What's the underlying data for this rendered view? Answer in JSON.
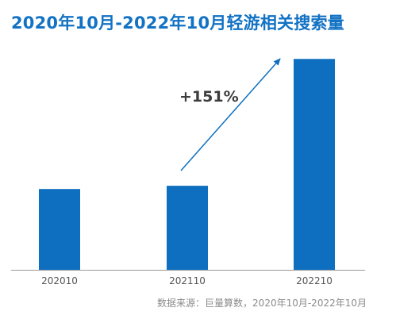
{
  "title": "2020年10月-2022年10月轻游相关搜索量",
  "source": "数据来源：巨量算数，2020年10月-2022年10月",
  "colors": {
    "bar": "#0e6fc0",
    "title": "#1272c4",
    "axis": "#9a9a9a",
    "annotation_text": "#3c3c3c"
  },
  "chart_data": {
    "type": "bar",
    "title": "2020年10月-2022年10月轻游相关搜索量",
    "xlabel": "",
    "ylabel": "",
    "categories": [
      "202010",
      "202110",
      "202210"
    ],
    "values": [
      100,
      104,
      261
    ],
    "ylim": [
      0,
      275
    ],
    "grid": false,
    "legend": "none",
    "annotation": {
      "text": "+151%",
      "from_category": "202110",
      "to_category": "202210"
    }
  }
}
